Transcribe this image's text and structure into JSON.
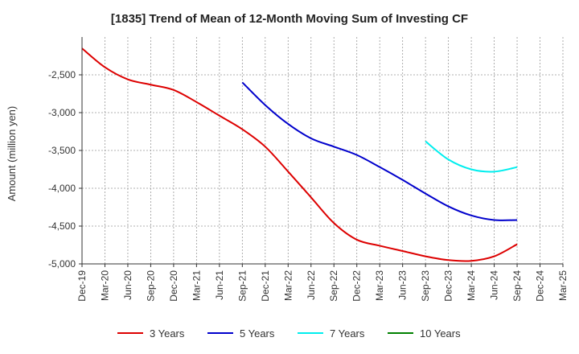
{
  "chart_data": {
    "type": "line",
    "title": "[1835]  Trend of Mean of 12-Month Moving Sum of Investing CF",
    "xlabel": "",
    "ylabel": "Amount (million yen)",
    "ylim": [
      -5000,
      -2000
    ],
    "yticks": [
      -5000,
      -4500,
      -4000,
      -3500,
      -3000,
      -2500
    ],
    "ytick_labels": [
      "-5,000",
      "-4,500",
      "-4,000",
      "-3,500",
      "-3,000",
      "-2,500"
    ],
    "categories": [
      "Dec-19",
      "Mar-20",
      "Jun-20",
      "Sep-20",
      "Dec-20",
      "Mar-21",
      "Jun-21",
      "Sep-21",
      "Dec-21",
      "Mar-22",
      "Jun-22",
      "Sep-22",
      "Dec-22",
      "Mar-23",
      "Jun-23",
      "Sep-23",
      "Dec-23",
      "Mar-24",
      "Jun-24",
      "Sep-24",
      "Dec-24",
      "Mar-25"
    ],
    "grid": true,
    "legend_position": "bottom",
    "series": [
      {
        "name": "3 Years",
        "color": "#dd0000",
        "values": [
          -2150,
          -2400,
          -2560,
          -2630,
          -2700,
          -2860,
          -3040,
          -3220,
          -3450,
          -3780,
          -4120,
          -4460,
          -4680,
          -4760,
          -4830,
          -4900,
          -4950,
          -4960,
          -4900,
          -4740,
          null,
          null
        ]
      },
      {
        "name": "5 Years",
        "color": "#0000cc",
        "values": [
          null,
          null,
          null,
          null,
          null,
          null,
          null,
          -2600,
          -2900,
          -3150,
          -3340,
          -3450,
          -3560,
          -3720,
          -3890,
          -4070,
          -4240,
          -4360,
          -4420,
          -4420,
          null,
          null
        ]
      },
      {
        "name": "7 Years",
        "color": "#00eeee",
        "values": [
          null,
          null,
          null,
          null,
          null,
          null,
          null,
          null,
          null,
          null,
          null,
          null,
          null,
          null,
          null,
          -3380,
          -3620,
          -3750,
          -3780,
          -3720,
          null,
          null
        ]
      },
      {
        "name": "10 Years",
        "color": "#008000",
        "values": [
          null,
          null,
          null,
          null,
          null,
          null,
          null,
          null,
          null,
          null,
          null,
          null,
          null,
          null,
          null,
          null,
          null,
          null,
          null,
          null,
          null,
          null
        ]
      }
    ]
  }
}
